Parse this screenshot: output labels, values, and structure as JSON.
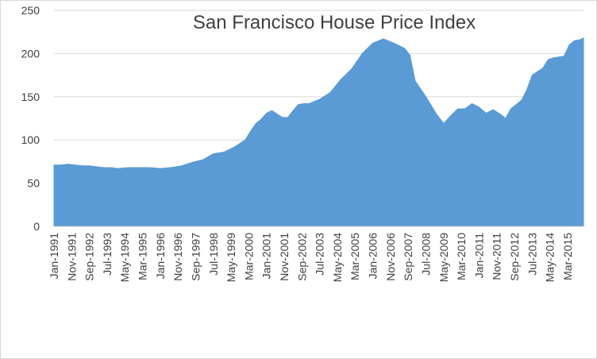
{
  "chart_data": {
    "type": "area",
    "title": "San Francisco House Price Index",
    "xlabel": "",
    "ylabel": "",
    "ylim": [
      0,
      250
    ],
    "yticks": [
      0,
      50,
      100,
      150,
      200,
      250
    ],
    "grid": true,
    "legend": "none",
    "series_color": "#5b9bd5",
    "x_start": "Jan-1991",
    "x_end": "Dec-2015",
    "x_tick_labels": [
      "Jan-1991",
      "Nov-1991",
      "Sep-1992",
      "Jul-1993",
      "May-1994",
      "Mar-1995",
      "Jan-1996",
      "Nov-1996",
      "Sep-1997",
      "Jul-1998",
      "May-1999",
      "Mar-2000",
      "Jan-2001",
      "Nov-2001",
      "Sep-2002",
      "Jul-2003",
      "May-2004",
      "Mar-2005",
      "Jan-2006",
      "Nov-2006",
      "Sep-2007",
      "Jul-2008",
      "May-2009",
      "Mar-2010",
      "Jan-2011",
      "Nov-2011",
      "Sep-2012",
      "Jul-2013",
      "May-2014",
      "Mar-2015"
    ],
    "points": [
      [
        "Jan-1991",
        71
      ],
      [
        "May-1991",
        71
      ],
      [
        "Sep-1991",
        72
      ],
      [
        "Jan-1992",
        71
      ],
      [
        "May-1992",
        70
      ],
      [
        "Sep-1992",
        70
      ],
      [
        "Jan-1993",
        69
      ],
      [
        "May-1993",
        68
      ],
      [
        "Sep-1993",
        68
      ],
      [
        "Jan-1994",
        67
      ],
      [
        "Jul-1994",
        68
      ],
      [
        "Jan-1995",
        68
      ],
      [
        "Jul-1995",
        68
      ],
      [
        "Jan-1996",
        67
      ],
      [
        "Jul-1996",
        68
      ],
      [
        "Jan-1997",
        70
      ],
      [
        "Jul-1997",
        74
      ],
      [
        "Jan-1998",
        77
      ],
      [
        "Jul-1998",
        84
      ],
      [
        "Jan-1999",
        86
      ],
      [
        "Jul-1999",
        92
      ],
      [
        "Jan-2000",
        100
      ],
      [
        "Apr-2000",
        110
      ],
      [
        "Jul-2000",
        119
      ],
      [
        "Oct-2000",
        124
      ],
      [
        "Jan-2001",
        131
      ],
      [
        "Apr-2001",
        134
      ],
      [
        "Jul-2001",
        130
      ],
      [
        "Oct-2001",
        126
      ],
      [
        "Jan-2002",
        126
      ],
      [
        "Apr-2002",
        134
      ],
      [
        "Jul-2002",
        141
      ],
      [
        "Oct-2002",
        142
      ],
      [
        "Jan-2003",
        142
      ],
      [
        "Jul-2003",
        147
      ],
      [
        "Jan-2004",
        155
      ],
      [
        "Jul-2004",
        170
      ],
      [
        "Jan-2005",
        182
      ],
      [
        "Jul-2005",
        200
      ],
      [
        "Jan-2006",
        212
      ],
      [
        "Jul-2006",
        217
      ],
      [
        "Jan-2007",
        212
      ],
      [
        "Jul-2007",
        206
      ],
      [
        "Oct-2007",
        198
      ],
      [
        "Jan-2008",
        168
      ],
      [
        "Jul-2008",
        150
      ],
      [
        "Jan-2009",
        130
      ],
      [
        "May-2009",
        119
      ],
      [
        "Sep-2009",
        128
      ],
      [
        "Jan-2010",
        136
      ],
      [
        "May-2010",
        136
      ],
      [
        "Sep-2010",
        142
      ],
      [
        "Jan-2011",
        138
      ],
      [
        "May-2011",
        131
      ],
      [
        "Sep-2011",
        135
      ],
      [
        "Jan-2012",
        130
      ],
      [
        "Apr-2012",
        125
      ],
      [
        "Jul-2012",
        136
      ],
      [
        "Oct-2012",
        141
      ],
      [
        "Jan-2013",
        146
      ],
      [
        "Apr-2013",
        158
      ],
      [
        "Jul-2013",
        175
      ],
      [
        "Oct-2013",
        179
      ],
      [
        "Jan-2014",
        183
      ],
      [
        "Apr-2014",
        193
      ],
      [
        "Jul-2014",
        195
      ],
      [
        "Oct-2014",
        196
      ],
      [
        "Jan-2015",
        197
      ],
      [
        "Apr-2015",
        210
      ],
      [
        "Jul-2015",
        215
      ],
      [
        "Oct-2015",
        216
      ],
      [
        "Dec-2015",
        218
      ]
    ]
  }
}
